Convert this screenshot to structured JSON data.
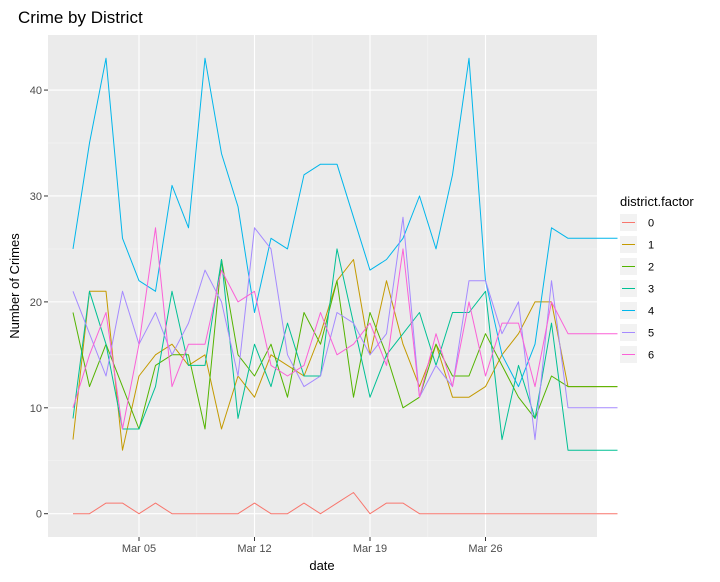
{
  "chart_data": {
    "type": "line",
    "title": "Crime by District",
    "xlabel": "date",
    "ylabel": "Number of Crimes",
    "x": [
      "Mar 01",
      "Mar 02",
      "Mar 03",
      "Mar 04",
      "Mar 05",
      "Mar 06",
      "Mar 07",
      "Mar 08",
      "Mar 09",
      "Mar 10",
      "Mar 11",
      "Mar 12",
      "Mar 13",
      "Mar 14",
      "Mar 15",
      "Mar 16",
      "Mar 17",
      "Mar 18",
      "Mar 19",
      "Mar 20",
      "Mar 21",
      "Mar 22",
      "Mar 23",
      "Mar 24",
      "Mar 25",
      "Mar 26",
      "Mar 27",
      "Mar 28",
      "Mar 29",
      "Mar 30",
      "Mar 31",
      "Apr 01",
      "Apr 02",
      "Apr 03"
    ],
    "x_ticks": [
      {
        "label": "Mar 05",
        "x": "Mar 05"
      },
      {
        "label": "Mar 12",
        "x": "Mar 12"
      },
      {
        "label": "Mar 19",
        "x": "Mar 19"
      },
      {
        "label": "Mar 26",
        "x": "Mar 26"
      }
    ],
    "y_ticks": [
      0,
      10,
      20,
      30,
      40
    ],
    "ylim": [
      -2.2,
      45.2
    ],
    "grid": true,
    "legend_title": "district.factor",
    "legend_position": "right",
    "series": [
      {
        "name": "0",
        "color": "#F8766D",
        "values": [
          0,
          0,
          1,
          1,
          0,
          1,
          0,
          0,
          0,
          0,
          0,
          1,
          0,
          0,
          1,
          0,
          1,
          2,
          0,
          1,
          1,
          0,
          0,
          0,
          0,
          0,
          0,
          0,
          0,
          0,
          0,
          0,
          0,
          0
        ]
      },
      {
        "name": "1",
        "color": "#C49A00",
        "values": [
          7,
          21,
          21,
          6,
          13,
          15,
          16,
          14,
          15,
          8,
          13,
          11,
          15,
          14,
          13,
          17,
          22,
          24,
          15,
          22,
          16,
          12,
          16,
          11,
          11,
          12,
          15,
          17,
          20,
          20,
          12,
          12,
          12,
          12
        ]
      },
      {
        "name": "2",
        "color": "#53B400",
        "values": [
          19,
          12,
          16,
          12,
          8,
          14,
          15,
          15,
          8,
          24,
          15,
          13,
          16,
          11,
          19,
          16,
          22,
          11,
          19,
          15,
          10,
          11,
          16,
          13,
          13,
          17,
          14,
          11,
          9,
          13,
          12,
          12,
          12,
          12
        ]
      },
      {
        "name": "3",
        "color": "#00C094",
        "values": [
          9,
          21,
          16,
          8,
          8,
          12,
          21,
          14,
          14,
          24,
          9,
          16,
          12,
          18,
          13,
          13,
          25,
          18,
          11,
          15,
          17,
          19,
          14,
          19,
          19,
          21,
          7,
          14,
          9,
          18,
          6,
          6,
          6,
          6
        ]
      },
      {
        "name": "4",
        "color": "#00B6EB",
        "values": [
          25,
          35,
          43,
          26,
          22,
          21,
          31,
          27,
          43,
          34,
          29,
          19,
          26,
          25,
          32,
          33,
          33,
          28,
          23,
          24,
          26,
          30,
          25,
          32,
          43,
          22,
          15,
          12,
          16,
          27,
          26,
          26,
          26,
          26
        ]
      },
      {
        "name": "5",
        "color": "#A58AFF",
        "values": [
          21,
          17,
          13,
          21,
          16,
          19,
          15,
          18,
          23,
          20,
          13,
          27,
          25,
          15,
          12,
          13,
          19,
          18,
          15,
          17,
          28,
          11,
          14,
          12,
          22,
          22,
          17,
          20,
          7,
          22,
          10,
          10,
          10,
          10
        ]
      },
      {
        "name": "6",
        "color": "#FB61D7",
        "values": [
          10,
          15,
          19,
          8,
          16,
          27,
          12,
          16,
          16,
          23,
          20,
          21,
          14,
          13,
          14,
          19,
          15,
          16,
          18,
          14,
          25,
          11,
          17,
          12,
          20,
          13,
          18,
          18,
          12,
          20,
          17,
          17,
          17,
          17
        ]
      }
    ]
  }
}
